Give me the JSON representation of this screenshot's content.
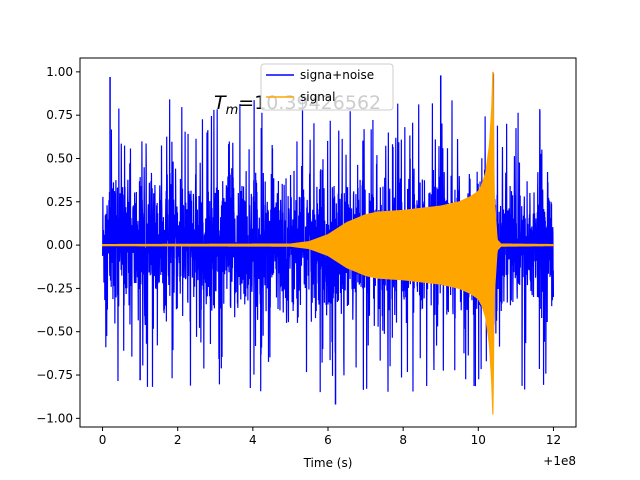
{
  "chart_data": {
    "type": "line",
    "title": "",
    "xlabel": "Time (s)",
    "ylabel": "",
    "x_offset_label": "+1e8",
    "xlim": [
      -0.6,
      12.6
    ],
    "ylim": [
      -1.05,
      1.08
    ],
    "xticks": [
      0,
      2,
      4,
      6,
      8,
      10,
      12
    ],
    "xtick_labels": [
      "0",
      "2",
      "4",
      "6",
      "8",
      "10",
      "12"
    ],
    "yticks": [
      -1.0,
      -0.75,
      -0.5,
      -0.25,
      0.0,
      0.25,
      0.5,
      0.75,
      1.0
    ],
    "ytick_labels": [
      "−1.00",
      "−0.75",
      "−0.50",
      "−0.25",
      "0.00",
      "0.25",
      "0.50",
      "0.75",
      "1.00"
    ],
    "grid": false,
    "legend_position": "top-center",
    "annotation": {
      "symbol": "T",
      "subscript": "m",
      "value_text": "=10.39426562"
    },
    "series": [
      {
        "name": "signa+noise",
        "color": "#0000ff",
        "x_range": [
          0,
          12
        ],
        "typical_envelope": 0.5,
        "peak_max": 1.0,
        "peak_min": -0.92
      },
      {
        "name": "signal",
        "color": "#ffa500",
        "x_range": [
          0,
          12
        ],
        "chirp_onset": 5.0,
        "plateau_start": 7.3,
        "plateau_amplitude": 0.19,
        "merger_time": 10.39,
        "peak_amplitude": 1.0,
        "envelope_points": [
          [
            0,
            0.003
          ],
          [
            5.0,
            0.006
          ],
          [
            5.5,
            0.02
          ],
          [
            6.0,
            0.06
          ],
          [
            6.5,
            0.13
          ],
          [
            7.0,
            0.175
          ],
          [
            7.3,
            0.19
          ],
          [
            8.0,
            0.2
          ],
          [
            9.0,
            0.225
          ],
          [
            9.5,
            0.25
          ],
          [
            9.8,
            0.28
          ],
          [
            10.0,
            0.31
          ],
          [
            10.1,
            0.35
          ],
          [
            10.2,
            0.42
          ],
          [
            10.3,
            0.58
          ],
          [
            10.36,
            0.8
          ],
          [
            10.39,
            1.0
          ],
          [
            10.42,
            0.3
          ],
          [
            10.5,
            0.03
          ],
          [
            10.6,
            0.006
          ],
          [
            12,
            0.003
          ]
        ]
      }
    ]
  }
}
